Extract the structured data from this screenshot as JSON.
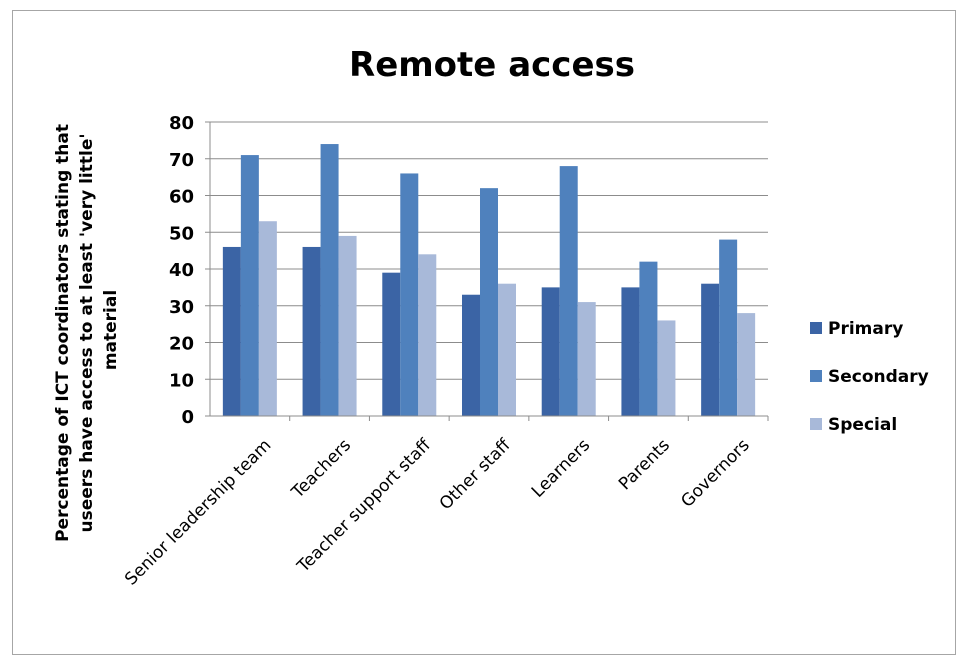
{
  "chart_data": {
    "type": "bar",
    "title": "Remote access",
    "ylabel": "Percentage of ICT coordinators stating that useers have access to at least 'very little' material",
    "xlabel": "",
    "categories": [
      "Senior leadership team",
      "Teachers",
      "Teacher support staff",
      "Other staff",
      "Learners",
      "Parents",
      "Governors"
    ],
    "series": [
      {
        "name": "Primary",
        "values": [
          46,
          46,
          39,
          33,
          35,
          35,
          36
        ],
        "color": "#3b64a5"
      },
      {
        "name": "Secondary",
        "values": [
          71,
          74,
          66,
          62,
          68,
          42,
          48
        ],
        "color": "#4f81bd"
      },
      {
        "name": "Special",
        "values": [
          53,
          49,
          44,
          36,
          31,
          26,
          28
        ],
        "color": "#a8b9d9"
      }
    ],
    "ylim": [
      0,
      80
    ],
    "yticks": [
      0,
      10,
      20,
      30,
      40,
      50,
      60,
      70,
      80
    ],
    "grid": true,
    "legend_position": "right"
  }
}
